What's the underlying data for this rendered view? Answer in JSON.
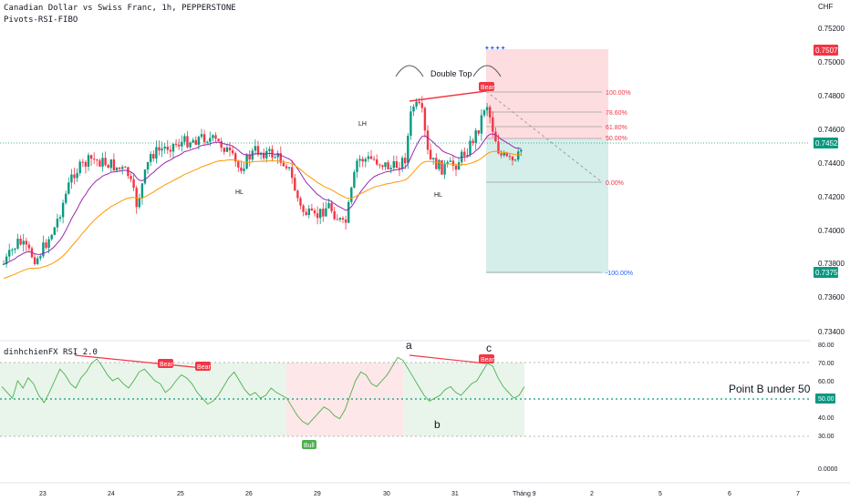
{
  "header": {
    "title": "Canadian Dollar vs Swiss Franc, 1h, PEPPERSTONE",
    "indicator": "Pivots-RSI-FIBO"
  },
  "price_axis": {
    "currency": "CHF",
    "ticks": [
      "0.75200",
      "0.75000",
      "0.74800",
      "0.74600",
      "0.74400",
      "0.74200",
      "0.74000",
      "0.73800",
      "0.73600",
      "0.73400"
    ],
    "tags": [
      {
        "label": "0.75079",
        "color": "#f23645"
      },
      {
        "label": "0.74522",
        "color": "#089981"
      },
      {
        "label": "0.73750",
        "color": "#089981"
      }
    ]
  },
  "time_axis": {
    "ticks": [
      "23",
      "24",
      "25",
      "26",
      "29",
      "30",
      "31",
      "Tháng 9",
      "2",
      "5",
      "6",
      "7"
    ]
  },
  "annotations": {
    "double_top": "Double Top",
    "bear_label": "Bear",
    "bull_label": "Bull",
    "lh": "LH",
    "hl_left": "HL",
    "hl_right": "HL",
    "rsi_a": "a",
    "rsi_b": "b",
    "rsi_c": "c",
    "point_b": "Point B under 50"
  },
  "fib_levels": [
    {
      "label": "100.00%",
      "color": "#f23645"
    },
    {
      "label": "78.60%",
      "color": "#f23645"
    },
    {
      "label": "61.80%",
      "color": "#f23645"
    },
    {
      "label": "50.00%",
      "color": "#f23645"
    },
    {
      "label": "0.00%",
      "color": "#f23645"
    },
    {
      "label": "-100.00%",
      "color": "#2962ff"
    }
  ],
  "rsi": {
    "title": "dinhchienFX RSI 2.0",
    "ticks": [
      "80.00",
      "70.00",
      "60.00",
      "40.00",
      "30.00",
      "0.0000"
    ],
    "level_tag": "50.00"
  },
  "colors": {
    "up": "#089981",
    "down": "#f23645",
    "ma_fast": "#9c27b0",
    "ma_slow": "#ff9800",
    "rsi_line": "#4caf50"
  },
  "chart_data": {
    "type": "candlestick",
    "y_range": [
      0.7333,
      0.7532
    ],
    "rsi_range": [
      0,
      85
    ],
    "rsi_line": [
      56,
      52,
      48,
      60,
      55,
      62,
      58,
      50,
      45,
      52,
      60,
      68,
      64,
      58,
      55,
      62,
      66,
      72,
      75,
      70,
      64,
      60,
      62,
      58,
      55,
      60,
      66,
      68,
      64,
      60,
      58,
      52,
      55,
      60,
      64,
      62,
      58,
      52,
      48,
      44,
      46,
      50,
      56,
      62,
      66,
      60,
      54,
      50,
      52,
      48,
      50,
      55,
      52,
      50,
      48,
      42,
      36,
      32,
      30,
      34,
      38,
      42,
      40,
      36,
      34,
      40,
      50,
      60,
      66,
      64,
      58,
      56,
      60,
      64,
      70,
      76,
      74,
      68,
      62,
      56,
      50,
      46,
      48,
      50,
      54,
      56,
      52,
      50,
      54,
      58,
      60,
      66,
      72,
      70,
      62,
      56,
      52,
      48,
      50,
      56
    ]
  }
}
